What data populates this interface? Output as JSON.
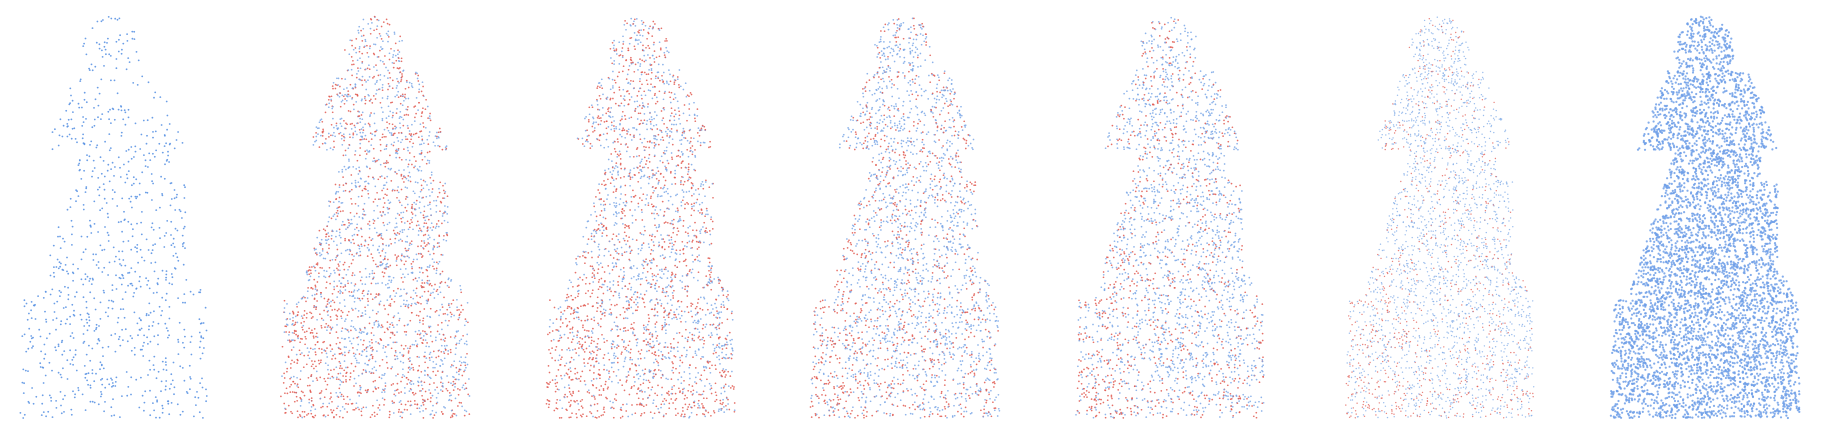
{
  "figure": {
    "subject": "hooded-figure-statue-point-cloud",
    "colors": {
      "input_blue": "#5b93e3",
      "blue": "#7aa7e6",
      "red": "#e0584f",
      "dense_blue": "#6e9fe8"
    },
    "panels": [
      {
        "id": "input-sparse",
        "density": 0.35,
        "red_ratio": 0.0,
        "style": "sparse"
      },
      {
        "id": "stage-2",
        "density": 1.0,
        "red_ratio": 0.45,
        "style": "mixed"
      },
      {
        "id": "stage-3",
        "density": 1.0,
        "red_ratio": 0.5,
        "style": "mixed"
      },
      {
        "id": "stage-4",
        "density": 1.0,
        "red_ratio": 0.3,
        "style": "mixed"
      },
      {
        "id": "stage-5",
        "density": 1.0,
        "red_ratio": 0.28,
        "style": "mixed"
      },
      {
        "id": "stage-6",
        "density": 1.15,
        "red_ratio": 0.2,
        "style": "fine"
      },
      {
        "id": "ground-truth-dense",
        "density": 2.0,
        "red_ratio": 0.0,
        "style": "dense"
      }
    ]
  }
}
